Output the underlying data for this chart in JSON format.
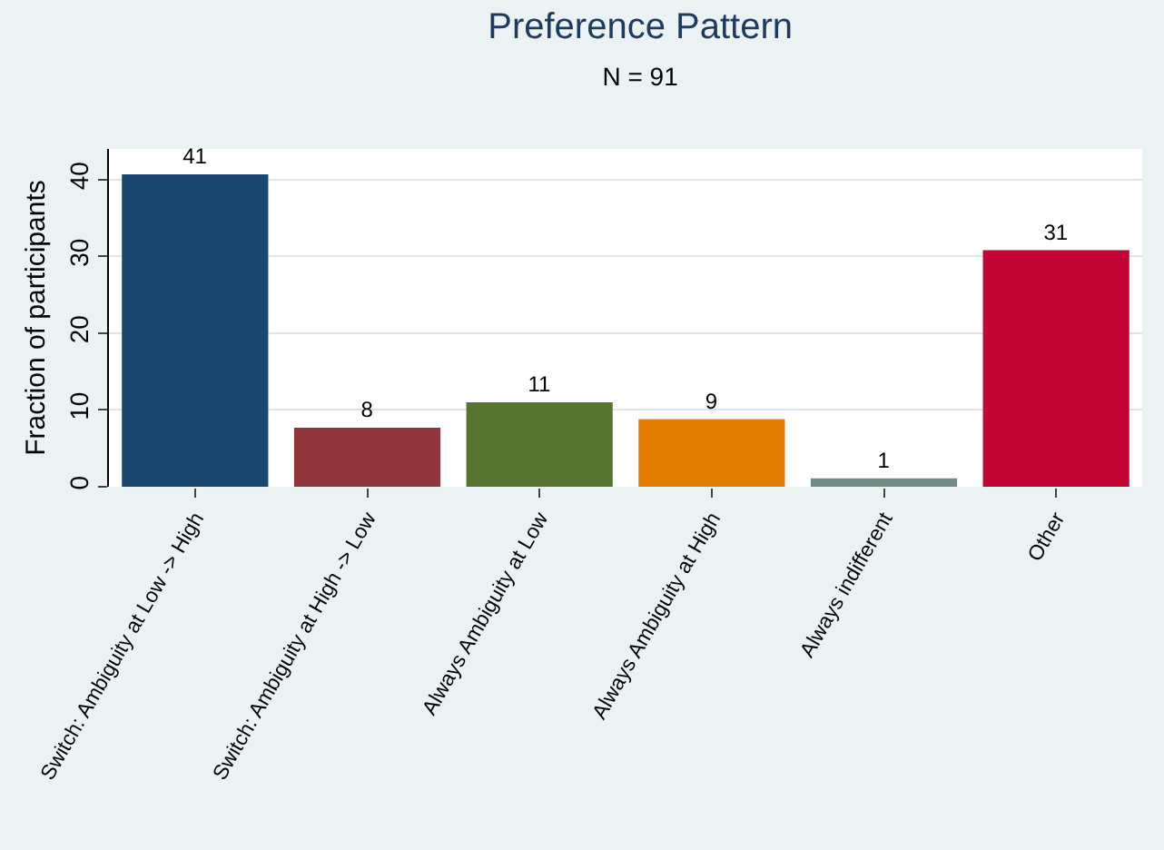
{
  "chart_data": {
    "type": "bar",
    "title": "Preference Pattern",
    "subtitle": "N = 91",
    "ylabel": "Fraction of participants",
    "categories": [
      "Switch: Ambiguity at Low -> High",
      "Switch: Ambiguity at High -> Low",
      "Always Ambiguity at Low",
      "Always Ambiguity at High",
      "Always indifferent",
      "Other"
    ],
    "values": [
      40.7,
      7.7,
      11,
      8.8,
      1.1,
      30.8
    ],
    "value_labels": [
      "41",
      "8",
      "11",
      "9",
      "1",
      "31"
    ],
    "colors": [
      "#1a476f",
      "#90353b",
      "#55752f",
      "#e37e00",
      "#6e8e84",
      "#c10534"
    ],
    "ylim": [
      0,
      44
    ],
    "yticks": [
      0,
      10,
      20,
      30,
      40
    ],
    "grid": "y"
  }
}
